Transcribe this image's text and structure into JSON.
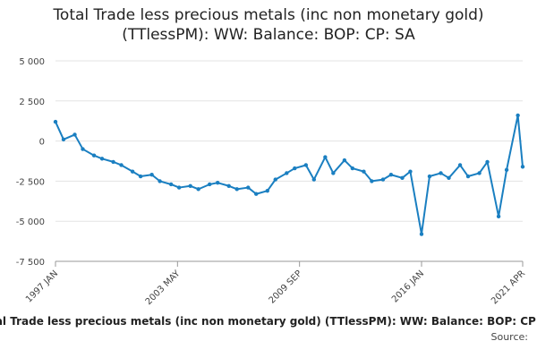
{
  "title_line1": "Total Trade less precious metals (inc non monetary gold)",
  "title_line2": "(TTlessPM): WW: Balance: BOP: CP: SA",
  "legend_label": "Total Trade less precious metals (inc non monetary gold) (TTlessPM): WW: Balance: BOP: CP: SA",
  "source_label": "Source:",
  "series_color": "#1a7fc1",
  "chart_data": {
    "type": "line",
    "title": "Total Trade less precious metals (inc non monetary gold) (TTlessPM): WW: Balance: BOP: CP: SA",
    "xlabel": "",
    "ylabel": "",
    "ylim": [
      -7500,
      5000
    ],
    "yticks": [
      5000,
      2500,
      0,
      -2500,
      -5000,
      -7500
    ],
    "ytick_labels": [
      "5 000",
      "2 500",
      "0",
      "-2 500",
      "-5 000",
      "-7 500"
    ],
    "xtick_labels": [
      "1997 JAN",
      "2003 MAY",
      "2009 SEP",
      "2016 JAN",
      "2021 APR"
    ],
    "xtick_dates": [
      "1997-01",
      "2003-05",
      "2009-09",
      "2016-01",
      "2021-04"
    ],
    "grid": true,
    "legend": "bottom",
    "series": [
      {
        "name": "Total Trade less precious metals (inc non monetary gold) (TTlessPM): WW: Balance: BOP: CP: SA",
        "x": [
          "1997-01",
          "1997-06",
          "1998-01",
          "1998-06",
          "1999-01",
          "1999-06",
          "2000-01",
          "2000-06",
          "2001-01",
          "2001-06",
          "2002-01",
          "2002-06",
          "2003-01",
          "2003-06",
          "2004-01",
          "2004-06",
          "2005-01",
          "2005-06",
          "2006-01",
          "2006-06",
          "2007-01",
          "2007-06",
          "2008-01",
          "2008-06",
          "2009-01",
          "2009-06",
          "2010-01",
          "2010-06",
          "2011-01",
          "2011-06",
          "2012-01",
          "2012-06",
          "2013-01",
          "2013-06",
          "2014-01",
          "2014-06",
          "2015-01",
          "2015-06",
          "2016-01",
          "2016-06",
          "2017-01",
          "2017-06",
          "2018-01",
          "2018-06",
          "2019-01",
          "2019-06",
          "2020-01",
          "2020-06",
          "2021-01",
          "2021-04"
        ],
        "y": [
          1200,
          100,
          400,
          -500,
          -900,
          -1100,
          -1300,
          -1500,
          -1900,
          -2200,
          -2100,
          -2500,
          -2700,
          -2900,
          -2800,
          -3000,
          -2700,
          -2600,
          -2800,
          -3000,
          -2900,
          -3300,
          -3100,
          -2400,
          -2000,
          -1700,
          -1500,
          -2400,
          -1000,
          -2000,
          -1200,
          -1700,
          -1900,
          -2500,
          -2400,
          -2100,
          -2300,
          -1900,
          -5800,
          -2200,
          -2000,
          -2300,
          -1500,
          -2200,
          -2000,
          -1300,
          -4700,
          -1800,
          1600,
          -1600
        ]
      }
    ]
  }
}
